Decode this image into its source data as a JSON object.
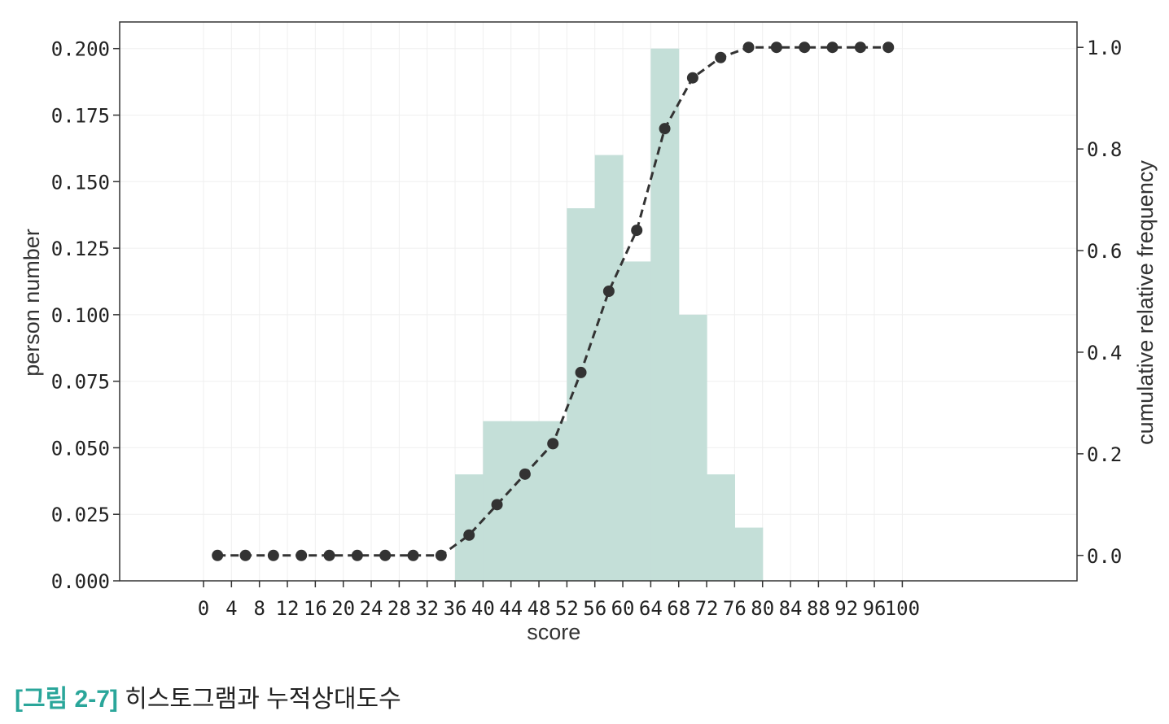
{
  "chart_data": {
    "type": "bar",
    "xlabel": "score",
    "ylabel": "person number",
    "y2label": "cumulative relative frequency",
    "xlim": [
      -12,
      125
    ],
    "ylim": [
      0,
      0.21
    ],
    "y2lim": [
      -0.05,
      1.05
    ],
    "x_ticks": [
      "0",
      "4",
      "8",
      "12",
      "16",
      "20",
      "24",
      "28",
      "32",
      "36",
      "40",
      "44",
      "48",
      "52",
      "56",
      "60",
      "64",
      "68",
      "72",
      "76",
      "80",
      "84",
      "88",
      "92",
      "96",
      "100"
    ],
    "y_ticks": [
      "0.000",
      "0.025",
      "0.050",
      "0.075",
      "0.100",
      "0.125",
      "0.150",
      "0.175",
      "0.200"
    ],
    "y2_ticks": [
      "0.0",
      "0.2",
      "0.4",
      "0.6",
      "0.8",
      "1.0"
    ],
    "grid": true,
    "colors": {
      "bar": "#c4dfd8",
      "line": "#333333",
      "axis": "#333333",
      "grid": "#efefef"
    },
    "histogram": {
      "name": "",
      "bins": [
        {
          "start": 36,
          "end": 40,
          "value": 0.04
        },
        {
          "start": 40,
          "end": 44,
          "value": 0.06
        },
        {
          "start": 44,
          "end": 48,
          "value": 0.06
        },
        {
          "start": 48,
          "end": 52,
          "value": 0.06
        },
        {
          "start": 52,
          "end": 56,
          "value": 0.14
        },
        {
          "start": 56,
          "end": 60,
          "value": 0.16
        },
        {
          "start": 60,
          "end": 64,
          "value": 0.12
        },
        {
          "start": 64,
          "end": 68,
          "value": 0.2
        },
        {
          "start": 68,
          "end": 72,
          "value": 0.1
        },
        {
          "start": 72,
          "end": 76,
          "value": 0.04
        },
        {
          "start": 76,
          "end": 80,
          "value": 0.02
        }
      ]
    },
    "cumulative": {
      "name": "",
      "x": [
        2,
        6,
        10,
        14,
        18,
        22,
        26,
        30,
        34,
        38,
        42,
        46,
        50,
        54,
        58,
        62,
        66,
        70,
        74,
        78,
        82,
        86,
        90,
        94,
        98
      ],
      "values": [
        0,
        0,
        0,
        0,
        0,
        0,
        0,
        0,
        0,
        0.04,
        0.1,
        0.16,
        0.22,
        0.36,
        0.52,
        0.64,
        0.84,
        0.94,
        0.98,
        1.0,
        1.0,
        1.0,
        1.0,
        1.0,
        1.0
      ]
    }
  },
  "caption": {
    "figure_label": "[그림 2-7]",
    "text": "히스토그램과 누적상대도수"
  }
}
